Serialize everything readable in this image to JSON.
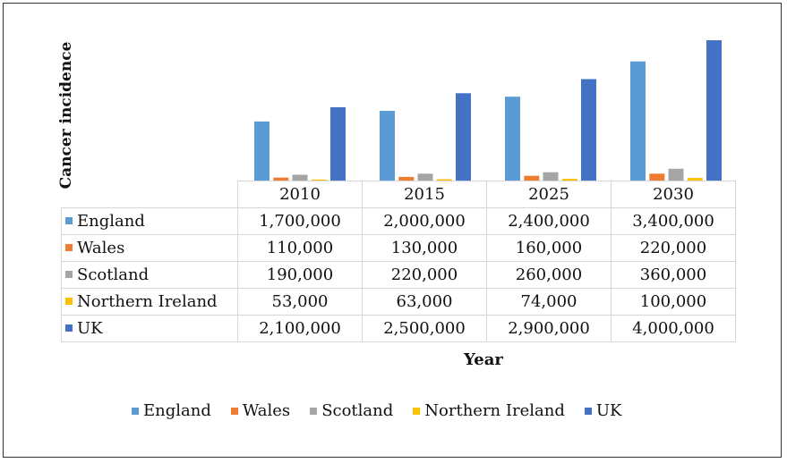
{
  "chart_data": {
    "type": "bar",
    "ylabel": "Cancer incidence",
    "xlabel": "Year",
    "categories": [
      "2010",
      "2015",
      "2025",
      "2030"
    ],
    "series": [
      {
        "name": "England",
        "color": "#5b9bd5",
        "values": [
          "1,700,000",
          "2,000,000",
          "2,400,000",
          "3,400,000"
        ],
        "numeric": [
          1700000,
          2000000,
          2400000,
          3400000
        ]
      },
      {
        "name": "Wales",
        "color": "#ed7d31",
        "values": [
          "110,000",
          "130,000",
          "160,000",
          "220,000"
        ],
        "numeric": [
          110000,
          130000,
          160000,
          220000
        ]
      },
      {
        "name": "Scotland",
        "color": "#a5a5a5",
        "values": [
          "190,000",
          "220,000",
          "260,000",
          "360,000"
        ],
        "numeric": [
          190000,
          220000,
          260000,
          360000
        ]
      },
      {
        "name": "Northern Ireland",
        "color": "#ffc000",
        "values": [
          "53,000",
          "63,000",
          "74,000",
          "100,000"
        ],
        "numeric": [
          53000,
          63000,
          74000,
          100000
        ]
      },
      {
        "name": "UK",
        "color": "#4472c4",
        "values": [
          "2,100,000",
          "2,500,000",
          "2,900,000",
          "4,000,000"
        ],
        "numeric": [
          2100000,
          2500000,
          2900000,
          4000000
        ]
      }
    ],
    "ylim": [
      0,
      4000000
    ],
    "legend_position": "bottom",
    "grid": false
  }
}
